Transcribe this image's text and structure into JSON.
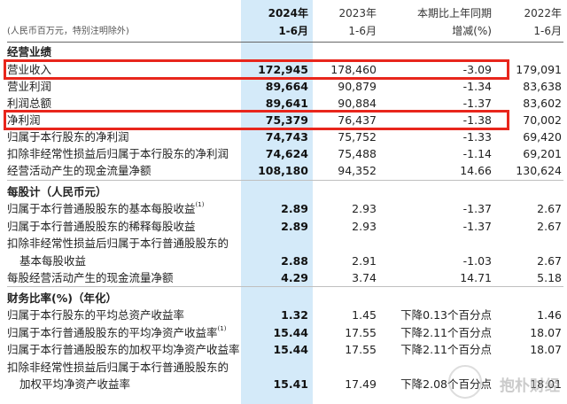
{
  "header": {
    "unit_note": "(人民币百万元，特别注明除外)",
    "col_2024_year": "2024年",
    "col_2024_period": "1-6月",
    "col_2023_year": "2023年",
    "col_2023_period": "1-6月",
    "col_change_line1": "本期比上年同期",
    "col_change_line2": "增减(%)",
    "col_2022_year": "2022年",
    "col_2022_period": "1-6月"
  },
  "sections": {
    "operating": "经营业绩",
    "per_share": "每股计（人民币元）",
    "ratios": "财务比率(%)（年化）"
  },
  "operating_rows": [
    {
      "label": "营业收入",
      "v2024": "172,945",
      "v2023": "178,460",
      "change": "-3.09",
      "v2022": "179,091"
    },
    {
      "label": "营业利润",
      "v2024": "89,664",
      "v2023": "90,879",
      "change": "-1.34",
      "v2022": "83,638"
    },
    {
      "label": "利润总额",
      "v2024": "89,641",
      "v2023": "90,884",
      "change": "-1.37",
      "v2022": "83,602"
    },
    {
      "label": "净利润",
      "v2024": "75,379",
      "v2023": "76,437",
      "change": "-1.38",
      "v2022": "70,002"
    },
    {
      "label": "归属于本行股东的净利润",
      "v2024": "74,743",
      "v2023": "75,752",
      "change": "-1.33",
      "v2022": "69,420"
    },
    {
      "label": "扣除非经常性损益后归属于本行股东的净利润",
      "v2024": "74,624",
      "v2023": "75,488",
      "change": "-1.14",
      "v2022": "69,201"
    },
    {
      "label": "经营活动产生的现金流量净额",
      "v2024": "108,180",
      "v2023": "94,352",
      "change": "14.66",
      "v2022": "130,624"
    }
  ],
  "per_share_rows": [
    {
      "label": "归属于本行普通股股东的基本每股收益",
      "note": "(1)",
      "v2024": "2.89",
      "v2023": "2.93",
      "change": "-1.37",
      "v2022": "2.67"
    },
    {
      "label": "归属于本行普通股股东的稀释每股收益",
      "note": "",
      "v2024": "2.89",
      "v2023": "2.93",
      "change": "-1.37",
      "v2022": "2.67"
    },
    {
      "label": "扣除非经常性损益后归属于本行普通股股东的",
      "note": "",
      "v2024": "",
      "v2023": "",
      "change": "",
      "v2022": ""
    },
    {
      "label": "基本每股收益",
      "note": "",
      "v2024": "2.88",
      "v2023": "2.91",
      "change": "-1.03",
      "v2022": "2.67"
    },
    {
      "label": "每股经营活动产生的现金流量净额",
      "note": "",
      "v2024": "4.29",
      "v2023": "3.74",
      "change": "14.71",
      "v2022": "5.18"
    }
  ],
  "ratio_rows": [
    {
      "label": "归属于本行股东的平均总资产收益率",
      "note": "",
      "v2024": "1.32",
      "v2023": "1.45",
      "change": "下降0.13个百分点",
      "v2022": "1.46"
    },
    {
      "label": "归属于本行普通股股东的平均净资产收益率",
      "note": "(1)",
      "v2024": "15.44",
      "v2023": "17.55",
      "change": "下降2.11个百分点",
      "v2022": "18.07"
    },
    {
      "label": "归属于本行普通股股东的加权平均净资产收益率",
      "note": "",
      "v2024": "15.44",
      "v2023": "17.55",
      "change": "下降2.11个百分点",
      "v2022": "18.07"
    },
    {
      "label": "扣除非经常性损益后归属于本行普通股股东的",
      "note": "",
      "v2024": "",
      "v2023": "",
      "change": "",
      "v2022": ""
    },
    {
      "label": "加权平均净资产收益率",
      "note": "",
      "v2024": "15.41",
      "v2023": "17.49",
      "change": "下降2.08个百分点",
      "v2022": "18.01"
    }
  ],
  "watermark": "抱朴财经",
  "colors": {
    "highlight_column": "#d4eaf9",
    "annotation_box": "#e8261c"
  }
}
